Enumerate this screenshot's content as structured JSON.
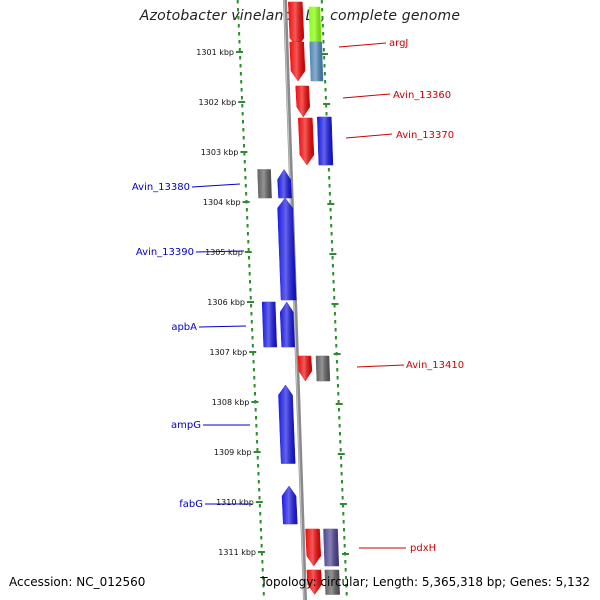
{
  "title": "Azotobacter vinelandii DJ, complete genome",
  "accession": "Accession: NC_012560",
  "summary": "Topology: circular; Length: 5,365,318 bp; Genes: 5,132",
  "colors": {
    "tick": "#2e8b2e",
    "backbone": "#8a8a8a",
    "forward_label": "#cc0000",
    "reverse_label": "#0000cc",
    "gene_red": "#ee0000",
    "gene_blue": "#1010e0",
    "gene_gray": "#5a5a5a",
    "gene_steel": "#4682b4",
    "gene_slate": "#483d8b",
    "gene_green": "#7fff00"
  },
  "kbp_ticks": [
    {
      "label": "1301 kbp",
      "kbp": 1301
    },
    {
      "label": "1302 kbp",
      "kbp": 1302
    },
    {
      "label": "1303 kbp",
      "kbp": 1303
    },
    {
      "label": "1304 kbp",
      "kbp": 1304
    },
    {
      "label": "1305 kbp",
      "kbp": 1305
    },
    {
      "label": "1306 kbp",
      "kbp": 1306
    },
    {
      "label": "1307 kbp",
      "kbp": 1307
    },
    {
      "label": "1308 kbp",
      "kbp": 1308
    },
    {
      "label": "1309 kbp",
      "kbp": 1309
    },
    {
      "label": "1310 kbp",
      "kbp": 1310
    },
    {
      "label": "1311 kbp",
      "kbp": 1311
    }
  ],
  "gene_labels": [
    {
      "name": "argJ",
      "strand": "forward"
    },
    {
      "name": "Avin_13360",
      "strand": "forward"
    },
    {
      "name": "Avin_13370",
      "strand": "forward"
    },
    {
      "name": "Avin_13380",
      "strand": "reverse"
    },
    {
      "name": "Avin_13390",
      "strand": "reverse"
    },
    {
      "name": "apbA",
      "strand": "reverse"
    },
    {
      "name": "Avin_13410",
      "strand": "forward"
    },
    {
      "name": "ampG",
      "strand": "reverse"
    },
    {
      "name": "fabG",
      "strand": "reverse"
    },
    {
      "name": "pdxH",
      "strand": "forward"
    }
  ]
}
